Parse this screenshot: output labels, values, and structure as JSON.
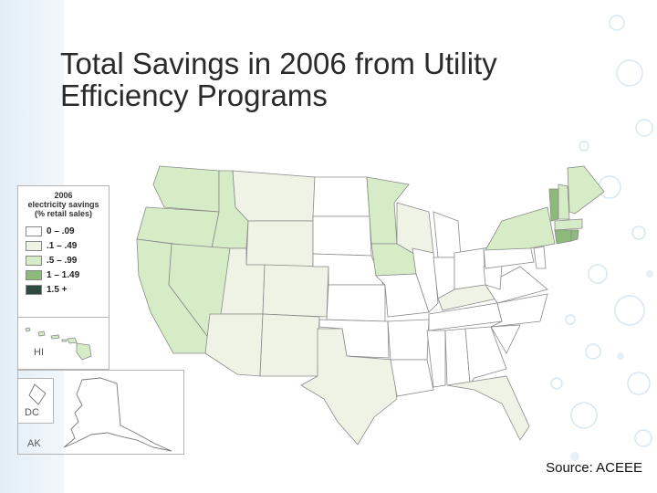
{
  "title": {
    "line1": "Total Savings in 2006 from Utility",
    "line2": "Efficiency Programs"
  },
  "legend": {
    "title_line1": "2006",
    "title_line2": "electricity savings",
    "title_line3": "(% retail sales)",
    "items": [
      {
        "label": "0 – .09",
        "color": "#ffffff"
      },
      {
        "label": ".1 – .49",
        "color": "#eef3e6"
      },
      {
        "label": ".5 – .99",
        "color": "#d6ecc6"
      },
      {
        "label": "1 – 1.49",
        "color": "#8dba7a"
      },
      {
        "label": "1.5 +",
        "color": "#2e4a3c"
      }
    ]
  },
  "insets": {
    "hawaii": "HI",
    "dc": "DC",
    "alaska": "AK"
  },
  "source": "Source: ACEEE",
  "colors": {
    "accent": "#2a2a2a",
    "border": "#8a8a8a"
  }
}
